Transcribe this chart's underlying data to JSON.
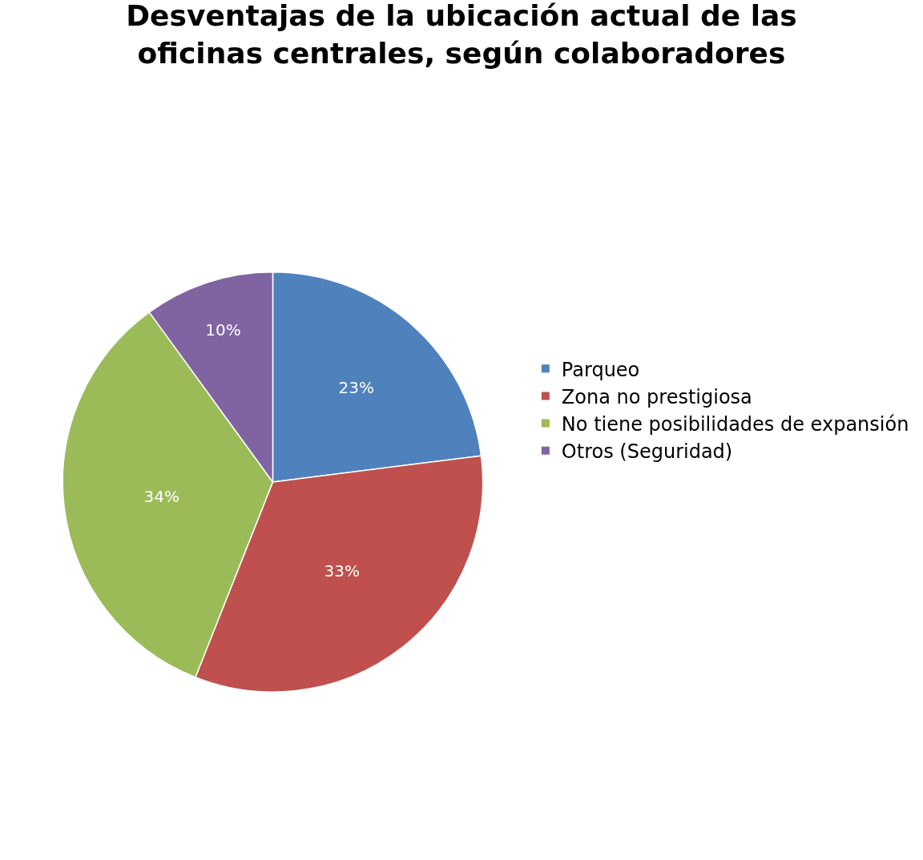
{
  "chart_data": {
    "type": "pie",
    "title": "Desventajas de la ubicación actual de las oficinas centrales, según colaboradores",
    "categories": [
      "Parqueo",
      "Zona no prestigiosa",
      "No tiene posibilidades de expansión",
      "Otros (Seguridad)"
    ],
    "values": [
      23,
      33,
      34,
      10
    ],
    "value_labels": [
      "23%",
      "33%",
      "34%",
      "10%"
    ],
    "colors": [
      "#4f81bd",
      "#c0504d",
      "#9bbb59",
      "#8064a2"
    ],
    "legend": "right"
  }
}
